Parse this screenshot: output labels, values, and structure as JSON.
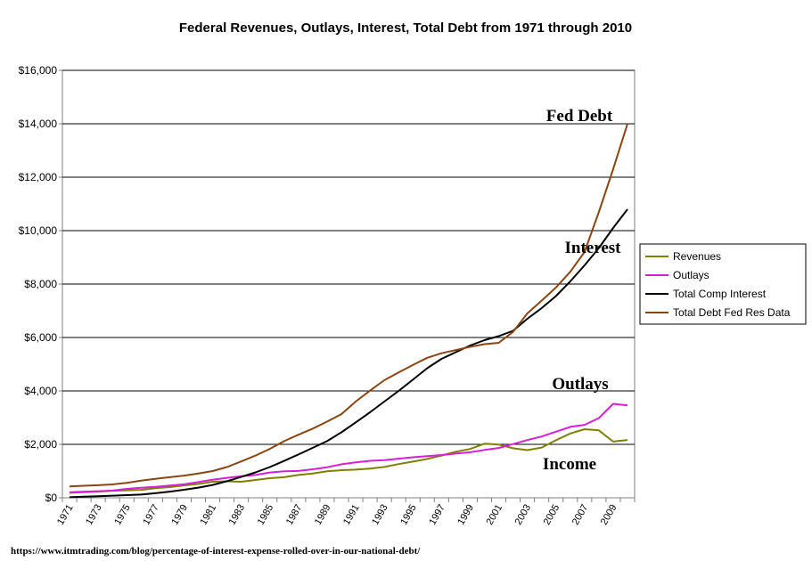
{
  "chart_data": {
    "type": "line",
    "title": "Federal Revenues, Outlays, Interest, Total Debt from 1971 through 2010",
    "xlabel": "",
    "ylabel": "",
    "ylim": [
      0,
      16000
    ],
    "yticks": [
      "$0",
      "$2,000",
      "$4,000",
      "$6,000",
      "$8,000",
      "$10,000",
      "$12,000",
      "$14,000",
      "$16,000"
    ],
    "x": [
      1971,
      1972,
      1973,
      1974,
      1975,
      1976,
      1977,
      1978,
      1979,
      1980,
      1981,
      1982,
      1983,
      1984,
      1985,
      1986,
      1987,
      1988,
      1989,
      1990,
      1991,
      1992,
      1993,
      1994,
      1995,
      1996,
      1997,
      1998,
      1999,
      2000,
      2001,
      2002,
      2003,
      2004,
      2005,
      2006,
      2007,
      2008,
      2009,
      2010
    ],
    "xtick_labels": [
      "1971",
      "1973",
      "1975",
      "1977",
      "1979",
      "1981",
      "1983",
      "1985",
      "1987",
      "1989",
      "1991",
      "1993",
      "1995",
      "1997",
      "1999",
      "2001",
      "2003",
      "2005",
      "2007",
      "2009"
    ],
    "grid": "horizontal",
    "legend_position": "right",
    "series": [
      {
        "name": "Revenues",
        "color": "#808000",
        "values": [
          187,
          207,
          231,
          263,
          279,
          298,
          356,
          400,
          463,
          517,
          599,
          618,
          601,
          666,
          734,
          769,
          854,
          909,
          991,
          1032,
          1055,
          1091,
          1154,
          1259,
          1352,
          1453,
          1579,
          1722,
          1827,
          2025,
          1991,
          1853,
          1782,
          1880,
          2153,
          2406,
          2568,
          2524,
          2105,
          2163
        ]
      },
      {
        "name": "Outlays",
        "color": "#d61fd6",
        "values": [
          210,
          230,
          245,
          269,
          332,
          372,
          409,
          459,
          504,
          591,
          678,
          746,
          808,
          852,
          946,
          990,
          1004,
          1065,
          1144,
          1253,
          1324,
          1382,
          1410,
          1462,
          1516,
          1561,
          1601,
          1652,
          1702,
          1789,
          1863,
          2011,
          2160,
          2293,
          2472,
          2655,
          2729,
          2983,
          3518,
          3456
        ]
      },
      {
        "name": "Total Comp Interest",
        "color": "#000000",
        "values": [
          20,
          40,
          60,
          80,
          100,
          120,
          170,
          230,
          300,
          380,
          480,
          620,
          780,
          950,
          1150,
          1380,
          1620,
          1870,
          2120,
          2450,
          2820,
          3200,
          3600,
          4000,
          4420,
          4850,
          5200,
          5450,
          5700,
          5900,
          6050,
          6250,
          6700,
          7100,
          7550,
          8100,
          8700,
          9350,
          10100,
          10800
        ]
      },
      {
        "name": "Total Debt Fed Res Data",
        "color": "#8b4513",
        "values": [
          424,
          450,
          470,
          500,
          560,
          640,
          710,
          770,
          830,
          910,
          1000,
          1150,
          1360,
          1580,
          1830,
          2120,
          2360,
          2590,
          2850,
          3130,
          3600,
          4010,
          4400,
          4690,
          4970,
          5240,
          5410,
          5530,
          5650,
          5750,
          5800,
          6210,
          6900,
          7380,
          7870,
          8460,
          9200,
          10700,
          12300,
          14000
        ]
      }
    ],
    "annotations": [
      {
        "text": "Fed Debt"
      },
      {
        "text": "Interest"
      },
      {
        "text": "Outlays"
      },
      {
        "text": "Income"
      }
    ],
    "source": "https://www.itmtrading.com/blog/percentage-of-interest-expense-rolled-over-in-our-national-debt/"
  }
}
